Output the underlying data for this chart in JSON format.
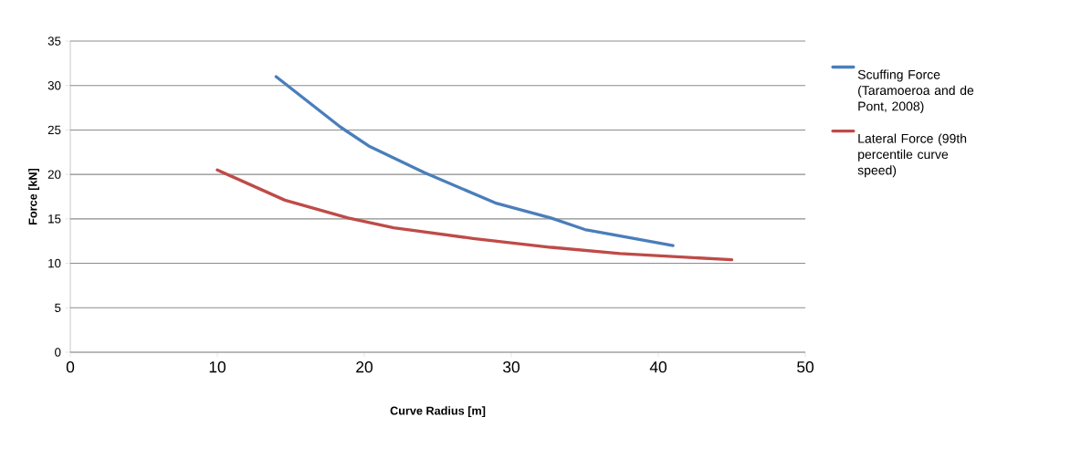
{
  "chart_data": {
    "type": "line",
    "xlabel": "Curve Radius [m]",
    "ylabel": "Force [kN]",
    "xlim": [
      0,
      50
    ],
    "xticks": [
      0,
      10,
      20,
      30,
      40,
      50
    ],
    "ylim": [
      0,
      35
    ],
    "yticks": [
      0,
      5,
      10,
      15,
      20,
      25,
      30,
      35
    ],
    "grid": "y",
    "legend": "right",
    "series": [
      {
        "name": "Scuffing Force (Taramoeroa and de Pont, 2008)",
        "color": "#4a7ebb",
        "x": [
          14,
          18.4,
          20.3,
          24.1,
          28.9,
          32.7,
          35.0,
          41
        ],
        "values": [
          31.0,
          25.3,
          23.2,
          20.2,
          16.8,
          15.1,
          13.8,
          12.0
        ]
      },
      {
        "name": "Lateral Force (99th percentile curve speed)",
        "color": "#be4b48",
        "x": [
          10,
          14.6,
          18.9,
          22.0,
          27.4,
          32.7,
          37.4,
          45
        ],
        "values": [
          20.5,
          17.1,
          15.1,
          14.0,
          12.8,
          11.8,
          11.1,
          10.4
        ]
      }
    ]
  }
}
